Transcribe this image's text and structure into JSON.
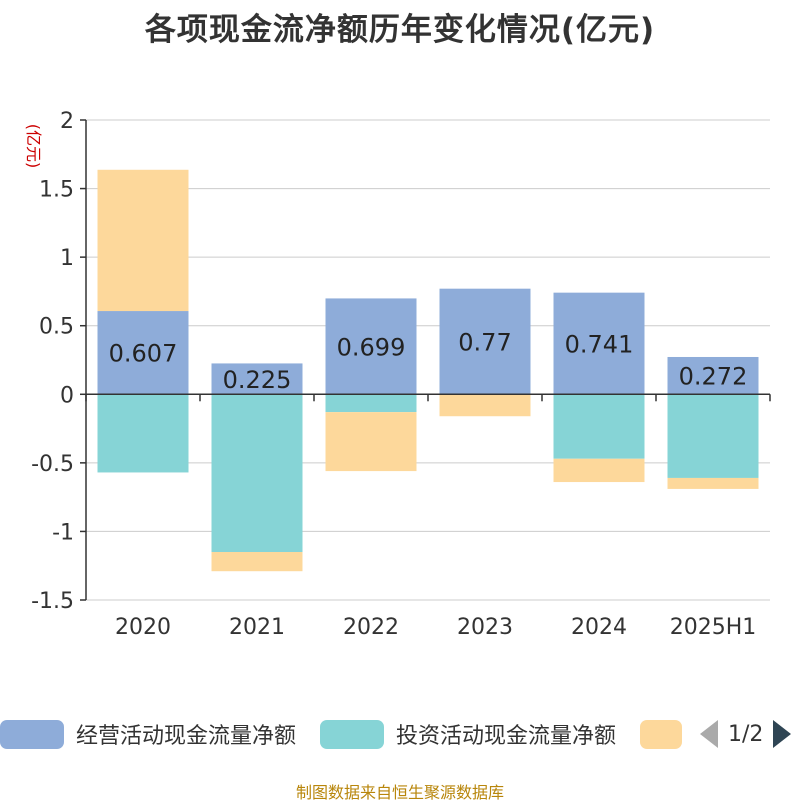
{
  "title": "各项现金流净额历年变化情况(亿元)",
  "source": "制图数据来自恒生聚源数据库",
  "pager": {
    "text": "1/2",
    "prev_icon": "triangle-left-icon",
    "next_icon": "triangle-right-icon"
  },
  "chart_data": {
    "type": "bar",
    "stacked": true,
    "categories": [
      "2020",
      "2021",
      "2022",
      "2023",
      "2024",
      "2025H1"
    ],
    "ylabel": "(亿元)",
    "ylim": [
      -1.5,
      2
    ],
    "yticks": [
      "2",
      "1.5",
      "1",
      "0.5",
      "0",
      "-0.5",
      "-1",
      "-1.5"
    ],
    "grid": true,
    "legend_position": "bottom",
    "series": [
      {
        "name": "经营活动现金流量净额",
        "color": "#8eacd9",
        "values": [
          0.607,
          0.225,
          0.699,
          0.77,
          0.741,
          0.272
        ],
        "data_labels": [
          "0.607",
          "0.225",
          "0.699",
          "0.77",
          "0.741",
          "0.272"
        ]
      },
      {
        "name": "投资活动现金流量净额",
        "color": "#86d4d6",
        "values": [
          -0.57,
          -1.15,
          -0.13,
          0,
          -0.47,
          -0.61
        ]
      },
      {
        "name": "",
        "color": "#fdd89b",
        "values": [
          1.03,
          -0.14,
          -0.43,
          -0.16,
          -0.17,
          -0.08
        ]
      }
    ]
  }
}
